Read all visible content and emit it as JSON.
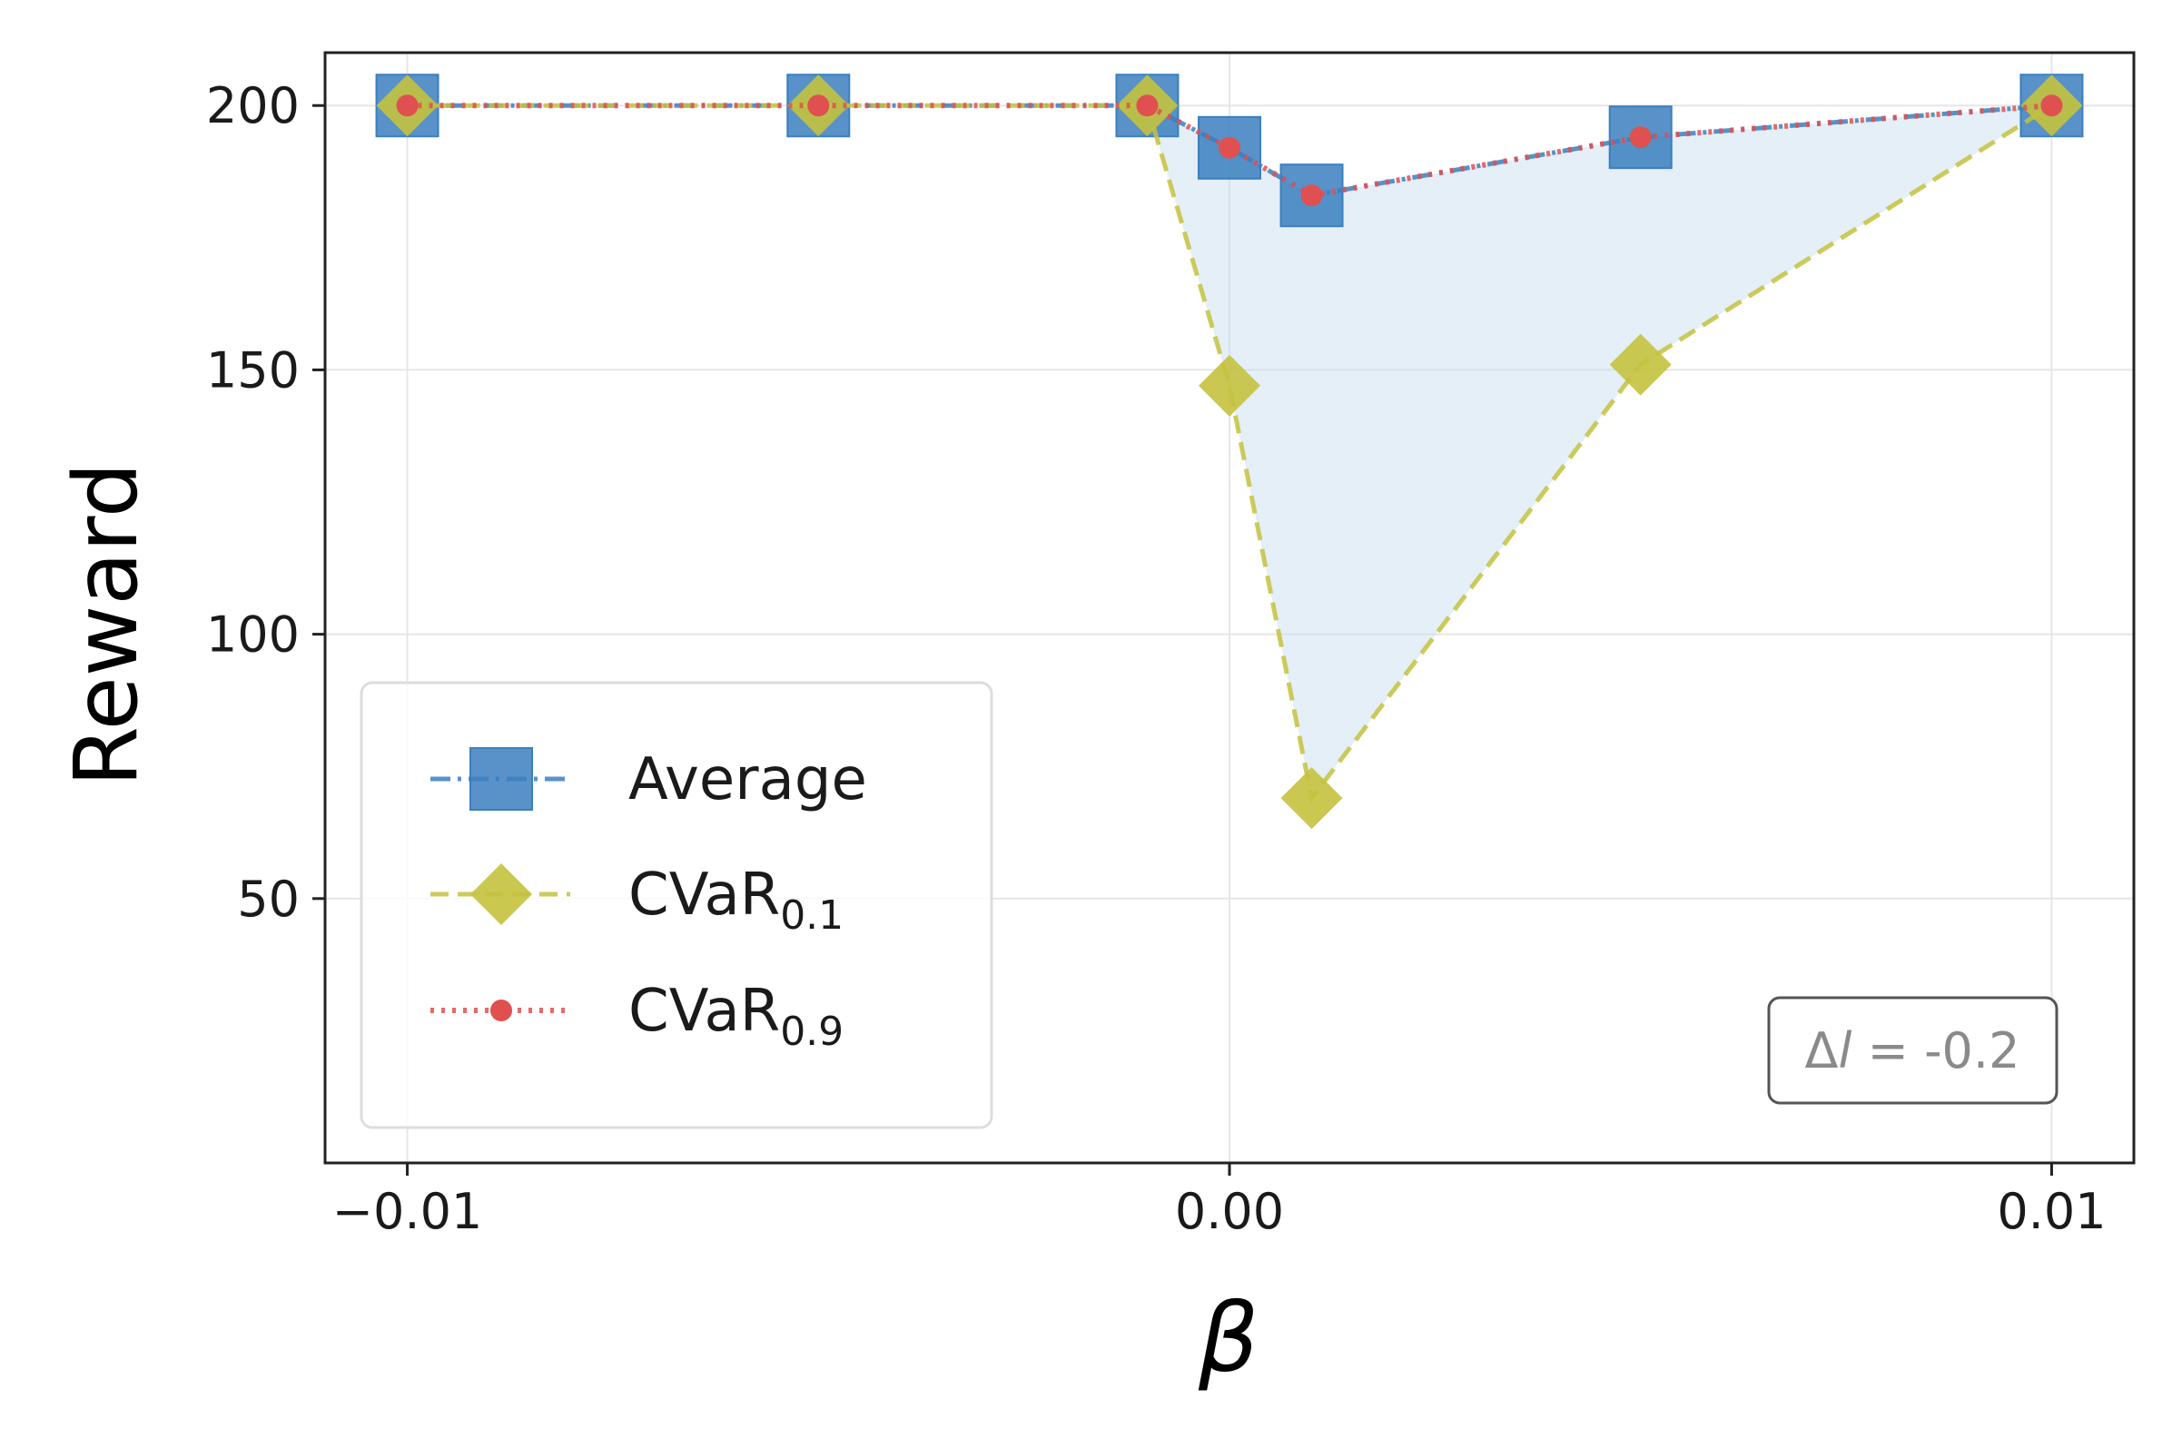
{
  "chart_data": {
    "type": "line",
    "xlabel": "β",
    "ylabel": "Reward",
    "xlim": [
      -0.011,
      0.011
    ],
    "ylim": [
      0,
      210
    ],
    "xticks": [
      {
        "value": -0.01,
        "label": "−0.01"
      },
      {
        "value": 0.0,
        "label": "0.00"
      },
      {
        "value": 0.01,
        "label": "0.01"
      }
    ],
    "yticks": [
      {
        "value": 50,
        "label": "50"
      },
      {
        "value": 100,
        "label": "100"
      },
      {
        "value": 150,
        "label": "150"
      },
      {
        "value": 200,
        "label": "200"
      }
    ],
    "grid": true,
    "legend_position": "lower-left",
    "shaded_region": "between Average and CVaR0.1",
    "series": [
      {
        "name": "Average",
        "marker": "square",
        "linestyle": "dash-dot",
        "color": "#3b7fbf",
        "x": [
          -0.01,
          -0.005,
          -0.001,
          0.0,
          0.001,
          0.005,
          0.01
        ],
        "values": [
          200,
          200,
          200,
          192,
          183,
          194,
          200
        ]
      },
      {
        "name": "CVaR",
        "subscript": "0.1",
        "marker": "diamond",
        "linestyle": "dashed",
        "color": "#c4c23e",
        "x": [
          -0.01,
          -0.005,
          -0.001,
          0.0,
          0.001,
          0.005,
          0.01
        ],
        "values": [
          200,
          200,
          200,
          147,
          69,
          151,
          200
        ]
      },
      {
        "name": "CVaR",
        "subscript": "0.9",
        "marker": "circle",
        "linestyle": "dotted",
        "color": "#e05050",
        "x": [
          -0.01,
          -0.005,
          -0.001,
          0.0,
          0.001,
          0.005,
          0.01
        ],
        "values": [
          200,
          200,
          200,
          192,
          183,
          194,
          200
        ]
      }
    ],
    "annotation": {
      "symbol": "Δ",
      "italic_var": "l",
      "text": " = -0.2"
    }
  }
}
